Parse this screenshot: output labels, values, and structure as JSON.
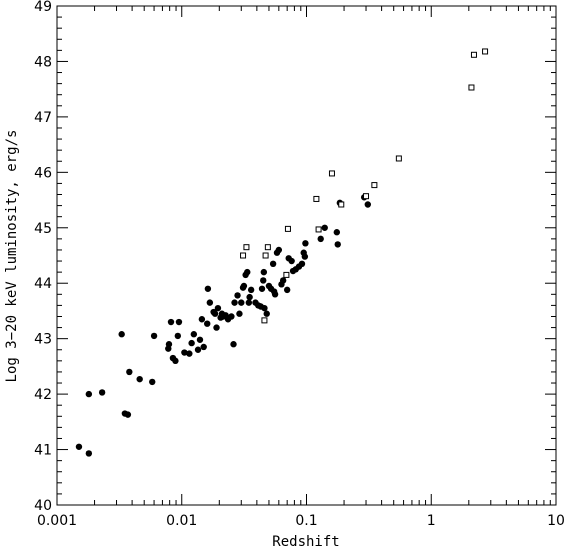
{
  "chart_data": {
    "type": "scatter",
    "title": "",
    "xlabel": "Redshift",
    "ylabel": "Log 3−20 keV luminosity, erg/s",
    "xscale": "log",
    "xlim": [
      0.001,
      10
    ],
    "ylim": [
      40,
      49
    ],
    "x_ticks": [
      "0.001",
      "0.01",
      "0.1",
      "1",
      "10"
    ],
    "y_ticks": [
      "40",
      "41",
      "42",
      "43",
      "44",
      "45",
      "46",
      "47",
      "48",
      "49"
    ],
    "grid": false,
    "legend": "none",
    "series": [
      {
        "marker": "filled-circle",
        "color": "#000000",
        "points": [
          [
            0.0015,
            41.05
          ],
          [
            0.0018,
            40.93
          ],
          [
            0.0018,
            42.0
          ],
          [
            0.0023,
            42.03
          ],
          [
            0.0033,
            43.08
          ],
          [
            0.0035,
            41.65
          ],
          [
            0.0037,
            41.63
          ],
          [
            0.0038,
            42.4
          ],
          [
            0.0046,
            42.27
          ],
          [
            0.0058,
            42.22
          ],
          [
            0.006,
            43.05
          ],
          [
            0.0078,
            42.82
          ],
          [
            0.0079,
            42.9
          ],
          [
            0.0082,
            43.3
          ],
          [
            0.0085,
            42.65
          ],
          [
            0.0089,
            42.6
          ],
          [
            0.0093,
            43.05
          ],
          [
            0.0095,
            43.3
          ],
          [
            0.0105,
            42.75
          ],
          [
            0.0115,
            42.73
          ],
          [
            0.012,
            42.92
          ],
          [
            0.0125,
            43.08
          ],
          [
            0.0135,
            42.8
          ],
          [
            0.014,
            42.98
          ],
          [
            0.0145,
            43.35
          ],
          [
            0.015,
            42.85
          ],
          [
            0.016,
            43.27
          ],
          [
            0.0162,
            43.9
          ],
          [
            0.0168,
            43.65
          ],
          [
            0.018,
            43.48
          ],
          [
            0.0185,
            43.45
          ],
          [
            0.019,
            43.2
          ],
          [
            0.0195,
            43.55
          ],
          [
            0.0205,
            43.38
          ],
          [
            0.021,
            43.45
          ],
          [
            0.0215,
            43.4
          ],
          [
            0.0225,
            43.42
          ],
          [
            0.0235,
            43.35
          ],
          [
            0.025,
            43.4
          ],
          [
            0.026,
            42.9
          ],
          [
            0.0265,
            43.65
          ],
          [
            0.028,
            43.78
          ],
          [
            0.029,
            43.45
          ],
          [
            0.03,
            43.65
          ],
          [
            0.031,
            43.92
          ],
          [
            0.0315,
            43.95
          ],
          [
            0.0325,
            44.15
          ],
          [
            0.0335,
            44.2
          ],
          [
            0.0345,
            43.65
          ],
          [
            0.035,
            43.75
          ],
          [
            0.036,
            43.88
          ],
          [
            0.039,
            43.65
          ],
          [
            0.041,
            43.6
          ],
          [
            0.043,
            43.58
          ],
          [
            0.044,
            43.9
          ],
          [
            0.045,
            44.05
          ],
          [
            0.0455,
            44.2
          ],
          [
            0.046,
            43.55
          ],
          [
            0.048,
            43.45
          ],
          [
            0.05,
            43.95
          ],
          [
            0.052,
            43.9
          ],
          [
            0.054,
            44.35
          ],
          [
            0.055,
            43.85
          ],
          [
            0.056,
            43.8
          ],
          [
            0.058,
            44.55
          ],
          [
            0.06,
            44.6
          ],
          [
            0.063,
            43.98
          ],
          [
            0.065,
            44.05
          ],
          [
            0.07,
            43.88
          ],
          [
            0.072,
            44.45
          ],
          [
            0.076,
            44.4
          ],
          [
            0.078,
            44.22
          ],
          [
            0.082,
            44.25
          ],
          [
            0.087,
            44.3
          ],
          [
            0.092,
            44.35
          ],
          [
            0.095,
            44.55
          ],
          [
            0.097,
            44.48
          ],
          [
            0.098,
            44.72
          ],
          [
            0.13,
            44.8
          ],
          [
            0.14,
            45.0
          ],
          [
            0.175,
            44.92
          ],
          [
            0.178,
            44.7
          ],
          [
            0.185,
            45.45
          ],
          [
            0.29,
            45.55
          ],
          [
            0.31,
            45.42
          ]
        ]
      },
      {
        "marker": "open-square",
        "color": "#000000",
        "points": [
          [
            0.031,
            44.5
          ],
          [
            0.033,
            44.65
          ],
          [
            0.047,
            44.5
          ],
          [
            0.046,
            43.33
          ],
          [
            0.049,
            44.65
          ],
          [
            0.069,
            44.15
          ],
          [
            0.071,
            44.98
          ],
          [
            0.12,
            45.52
          ],
          [
            0.125,
            44.97
          ],
          [
            0.16,
            45.98
          ],
          [
            0.19,
            45.42
          ],
          [
            0.3,
            45.57
          ],
          [
            0.35,
            45.77
          ],
          [
            0.55,
            46.25
          ],
          [
            2.1,
            47.53
          ],
          [
            2.2,
            48.12
          ],
          [
            2.7,
            48.18
          ]
        ]
      }
    ]
  }
}
